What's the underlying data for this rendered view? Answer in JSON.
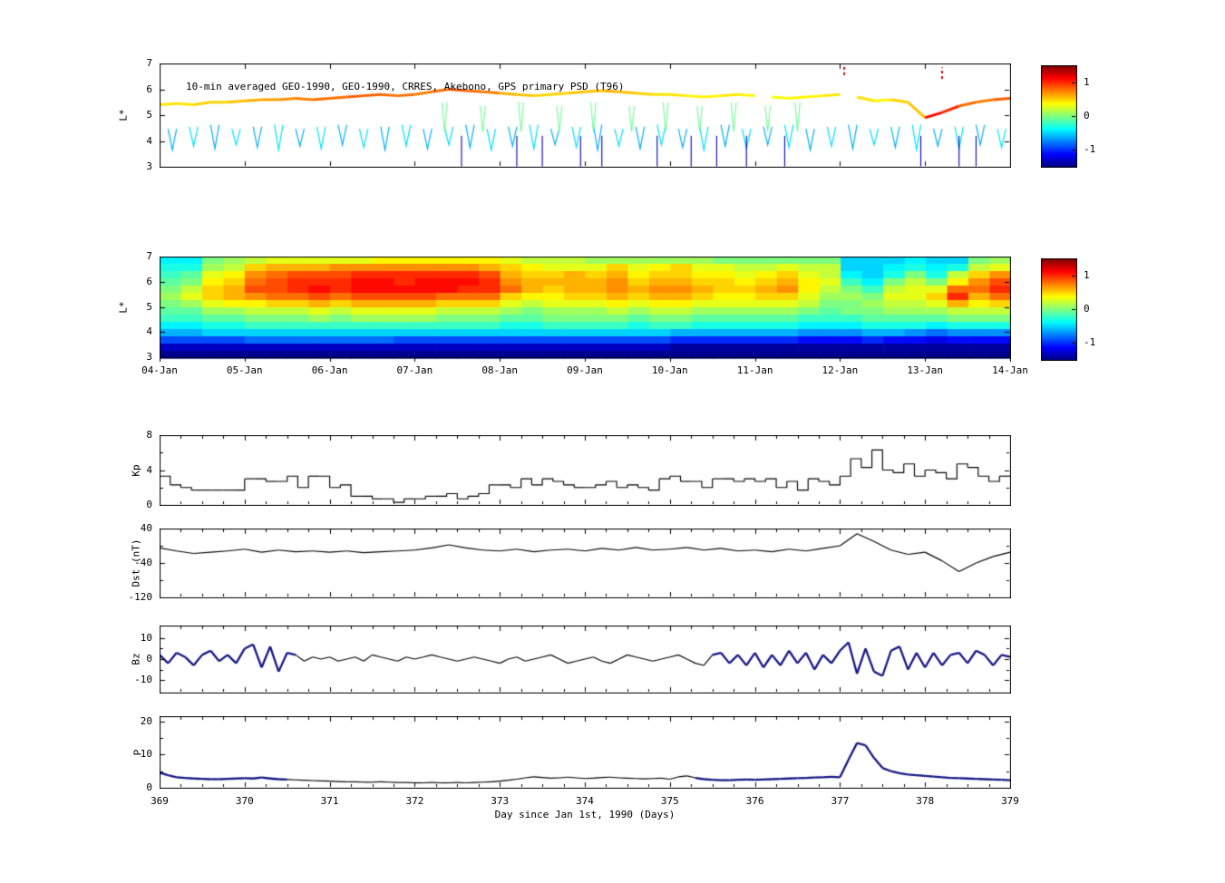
{
  "figure": {
    "background": "#ffffff",
    "axis_color": "#000000"
  },
  "colormap": {
    "vmin": -1.5,
    "vmax": 1.5,
    "tick_labels": [
      "1",
      "0",
      "-1"
    ],
    "tick_values": [
      1,
      0,
      -1
    ]
  },
  "chart_data": [
    {
      "id": "psd-scatter",
      "type": "scatter",
      "title": "10-min averaged GEO-1990, GEO-1990, CRRES, Akebono, GPS primary PSD (T96)",
      "ylabel": "L*",
      "ylim": [
        3,
        7
      ],
      "yticks": [
        3,
        4,
        5,
        6,
        7
      ],
      "xlim": [
        369,
        379
      ],
      "track": {
        "x_start": 369,
        "dx": 0.2,
        "y": [
          5.4,
          5.45,
          5.4,
          5.5,
          5.5,
          5.55,
          5.6,
          5.6,
          5.65,
          5.6,
          5.65,
          5.7,
          5.75,
          5.8,
          5.75,
          5.8,
          5.9,
          6,
          5.95,
          5.9,
          5.85,
          5.8,
          5.75,
          5.8,
          5.85,
          5.9,
          5.95,
          5.9,
          5.85,
          5.8,
          5.8,
          5.75,
          5.7,
          5.75,
          5.8,
          5.75,
          5.7,
          5.65,
          5.7,
          5.75,
          5.8,
          5.7,
          5.55,
          5.6,
          5.5,
          4.9,
          5.1,
          5.35,
          5.5,
          5.6,
          5.65
        ],
        "v": [
          0.45,
          0.45,
          0.5,
          0.5,
          0.55,
          0.6,
          0.65,
          0.7,
          0.75,
          0.8,
          0.8,
          0.85,
          0.85,
          0.8,
          0.8,
          0.75,
          0.8,
          0.85,
          0.8,
          0.75,
          0.6,
          0.55,
          0.5,
          0.5,
          0.55,
          0.55,
          0.6,
          0.55,
          0.5,
          0.45,
          0.45,
          0.4,
          0.4,
          0.45,
          0.4,
          0.35,
          0.35,
          0.4,
          0.4,
          0.45,
          0.5,
          0.45,
          0.4,
          0.5,
          0.55,
          1.1,
          1,
          0.8,
          0.75,
          0.85,
          0.9
        ],
        "gap_ranges": [
          [
            375.95,
            376.1
          ],
          [
            376.55,
            376.7
          ],
          [
            377.1,
            377.25
          ]
        ]
      },
      "v_spikes": {
        "x": [
          369.15,
          369.4,
          369.65,
          369.9,
          370.15,
          370.4,
          370.65,
          370.9,
          371.15,
          371.4,
          371.65,
          371.9,
          372.15,
          372.4,
          372.65,
          372.9,
          373.15,
          373.4,
          373.65,
          373.9,
          374.15,
          374.4,
          374.65,
          374.9,
          375.15,
          375.4,
          375.65,
          375.9,
          376.15,
          376.4,
          376.65,
          376.9,
          377.15,
          377.4,
          377.65,
          377.9,
          378.15,
          378.4,
          378.65,
          378.9
        ],
        "top": 4.55,
        "bot": 3.75,
        "v": -0.5
      },
      "tall_spikes": {
        "x": [
          372.35,
          372.8,
          373.25,
          373.7,
          374.1,
          374.55,
          374.95,
          375.35,
          375.75,
          376.15,
          376.5
        ],
        "top": 5.5,
        "bot": 4.35,
        "v": -0.05
      },
      "drop_lines": {
        "x": [
          372.55,
          373.2,
          373.5,
          373.95,
          374.2,
          374.85,
          375.25,
          375.55,
          375.9,
          376.35,
          377.95,
          378.4,
          378.6
        ],
        "top": 4.2,
        "bot": 3.02,
        "v": -1.35
      },
      "red_dashes": [
        {
          "x": 377.05,
          "y1": 6.55,
          "y2": 7.0,
          "v": 1.25
        },
        {
          "x": 378.2,
          "y1": 6.4,
          "y2": 6.85,
          "v": 1.25
        }
      ]
    },
    {
      "id": "psd-heatmap",
      "type": "heatmap",
      "ylabel": "L*",
      "ylim": [
        3,
        7
      ],
      "yticks": [
        3,
        4,
        5,
        6,
        7
      ],
      "xlim": [
        369,
        379
      ],
      "x_tick_labels": [
        "04-Jan",
        "05-Jan",
        "06-Jan",
        "07-Jan",
        "08-Jan",
        "09-Jan",
        "10-Jan",
        "11-Jan",
        "12-Jan",
        "13-Jan",
        "14-Jan"
      ],
      "grid": [
        [
          -0.4,
          -0.4,
          0,
          0.1,
          0.2,
          0.3,
          0.3,
          0.3,
          0.3,
          0.3,
          0.4,
          0.4,
          0.4,
          0.4,
          0.4,
          0.4,
          0.3,
          0.2,
          0.2,
          0.2,
          0.1,
          0.1,
          0.1,
          0.1,
          0.1,
          0.1,
          0,
          0,
          0,
          0,
          0,
          0,
          -0.5,
          -0.5,
          -0.5,
          -0.4,
          -0.5,
          -0.5,
          0,
          0.1
        ],
        [
          -0.3,
          -0.3,
          0.1,
          0.2,
          0.5,
          0.6,
          0.6,
          0.6,
          0.7,
          0.7,
          0.7,
          0.7,
          0.7,
          0.7,
          0.7,
          0.6,
          0.5,
          0.4,
          0.3,
          0.3,
          0.3,
          0.5,
          0.3,
          0.4,
          0.5,
          0.3,
          0.3,
          0.2,
          0.2,
          0.3,
          0.2,
          0.2,
          -0.5,
          -0.5,
          -0.4,
          -0.3,
          -0.4,
          -0.3,
          0.2,
          0.3
        ],
        [
          -0.2,
          -0.1,
          0.3,
          0.4,
          0.7,
          0.8,
          0.9,
          0.9,
          0.9,
          1,
          1,
          1,
          1,
          1,
          1,
          0.9,
          0.6,
          0.5,
          0.5,
          0.6,
          0.5,
          0.6,
          0.4,
          0.5,
          0.5,
          0.4,
          0.4,
          0.3,
          0.4,
          0.5,
          0.3,
          0.2,
          -0.4,
          -0.5,
          -0.3,
          0,
          -0.3,
          0.2,
          0.5,
          0.7
        ],
        [
          -0.1,
          0,
          0.4,
          0.5,
          0.8,
          0.9,
          1,
          1,
          1,
          1.1,
          1.1,
          1,
          1.1,
          1.1,
          1.1,
          1,
          0.7,
          0.6,
          0.6,
          0.6,
          0.6,
          0.7,
          0.5,
          0.6,
          0.6,
          0.5,
          0.5,
          0.4,
          0.5,
          0.6,
          0.4,
          0.3,
          -0.2,
          -0.4,
          0,
          0.2,
          0,
          0.4,
          0.7,
          0.9
        ],
        [
          0,
          0.2,
          0.5,
          0.6,
          0.9,
          0.9,
          1,
          1.1,
          1,
          1.1,
          1.1,
          1.1,
          1.1,
          1.1,
          1,
          1,
          0.8,
          0.6,
          0.5,
          0.6,
          0.6,
          0.7,
          0.6,
          0.7,
          0.7,
          0.6,
          0.5,
          0.5,
          0.6,
          0.7,
          0.4,
          0.2,
          0,
          -0.2,
          0.2,
          0.3,
          0.3,
          0.8,
          0.8,
          1
        ],
        [
          0.1,
          0.3,
          0.5,
          0.6,
          0.7,
          0.8,
          0.8,
          0.9,
          0.8,
          0.9,
          0.9,
          0.9,
          0.9,
          0.8,
          0.8,
          0.8,
          0.5,
          0.4,
          0.4,
          0.5,
          0.5,
          0.6,
          0.5,
          0.6,
          0.6,
          0.5,
          0.4,
          0.4,
          0.5,
          0.5,
          0.3,
          0.1,
          0.1,
          0,
          0.3,
          0.3,
          0.5,
          1,
          0.6,
          0.8
        ],
        [
          0,
          0.1,
          0.3,
          0.4,
          0.4,
          0.5,
          0.5,
          0.6,
          0.5,
          0.6,
          0.6,
          0.6,
          0.6,
          0.5,
          0.5,
          0.5,
          0.3,
          0.2,
          0.3,
          0.3,
          0.3,
          0.4,
          0.3,
          0.4,
          0.4,
          0.3,
          0.3,
          0.3,
          0.3,
          0.3,
          0.2,
          0,
          0,
          0.1,
          0.2,
          0.2,
          0.3,
          0.6,
          0.4,
          0.5
        ],
        [
          -0.1,
          -0.1,
          0.1,
          0.1,
          0.2,
          0.2,
          0.2,
          0.3,
          0.2,
          0.3,
          0.3,
          0.3,
          0.3,
          0.2,
          0.2,
          0.2,
          0.1,
          0,
          0.1,
          0.1,
          0.1,
          0.2,
          0.1,
          0.2,
          0.2,
          0.1,
          0.1,
          0.1,
          0.1,
          0.1,
          0,
          -0.1,
          0,
          0,
          0.1,
          0.1,
          0.1,
          0.2,
          0.2,
          0.2
        ],
        [
          -0.2,
          -0.2,
          -0.1,
          -0.1,
          0,
          0,
          0,
          0.1,
          0,
          0.1,
          0.1,
          0.1,
          0.1,
          0,
          0,
          0,
          -0.1,
          -0.1,
          0,
          0,
          0,
          0,
          -0.1,
          0,
          0,
          -0.1,
          -0.1,
          -0.1,
          -0.1,
          -0.1,
          -0.2,
          -0.2,
          -0.2,
          -0.1,
          -0.1,
          -0.1,
          -0.1,
          0,
          0,
          0
        ],
        [
          -0.4,
          -0.4,
          -0.3,
          -0.3,
          -0.2,
          -0.2,
          -0.2,
          -0.2,
          -0.2,
          -0.2,
          -0.2,
          -0.2,
          -0.2,
          -0.2,
          -0.2,
          -0.2,
          -0.3,
          -0.3,
          -0.2,
          -0.2,
          -0.2,
          -0.2,
          -0.3,
          -0.2,
          -0.2,
          -0.3,
          -0.3,
          -0.3,
          -0.3,
          -0.3,
          -0.4,
          -0.4,
          -0.4,
          -0.3,
          -0.3,
          -0.3,
          -0.4,
          -0.3,
          -0.3,
          -0.3
        ],
        [
          -0.6,
          -0.6,
          -0.5,
          -0.5,
          -0.5,
          -0.5,
          -0.5,
          -0.5,
          -0.5,
          -0.5,
          -0.5,
          -0.5,
          -0.5,
          -0.5,
          -0.5,
          -0.5,
          -0.5,
          -0.5,
          -0.5,
          -0.5,
          -0.5,
          -0.5,
          -0.5,
          -0.5,
          -0.6,
          -0.6,
          -0.6,
          -0.6,
          -0.6,
          -0.6,
          -0.7,
          -0.7,
          -0.7,
          -0.6,
          -0.6,
          -0.7,
          -0.8,
          -0.7,
          -0.7,
          -0.7
        ],
        [
          -0.9,
          -0.9,
          -0.9,
          -0.9,
          -0.8,
          -0.8,
          -0.8,
          -0.8,
          -0.8,
          -0.8,
          -0.8,
          -0.9,
          -0.9,
          -0.9,
          -0.9,
          -0.9,
          -0.9,
          -0.9,
          -0.9,
          -0.9,
          -0.9,
          -0.9,
          -0.9,
          -0.9,
          -1,
          -1,
          -1,
          -1,
          -1,
          -1,
          -1.1,
          -1.1,
          -1.1,
          -1,
          -1.1,
          -1.1,
          -1.2,
          -1.1,
          -1.1,
          -1.1
        ],
        [
          -1.3,
          -1.3,
          -1.3,
          -1.3,
          -1.3,
          -1.3,
          -1.3,
          -1.3,
          -1.3,
          -1.3,
          -1.3,
          -1.3,
          -1.3,
          -1.3,
          -1.3,
          -1.3,
          -1.3,
          -1.3,
          -1.3,
          -1.3,
          -1.3,
          -1.3,
          -1.3,
          -1.3,
          -1.4,
          -1.4,
          -1.4,
          -1.4,
          -1.4,
          -1.4,
          -1.4,
          -1.4,
          -1.4,
          -1.4,
          -1.4,
          -1.4,
          -1.4,
          -1.4,
          -1.4,
          -1.4
        ],
        [
          -1.45,
          -1.45,
          -1.45,
          -1.45,
          -1.45,
          -1.45,
          -1.45,
          -1.45,
          -1.45,
          -1.45,
          -1.45,
          -1.45,
          -1.45,
          -1.45,
          -1.45,
          -1.45,
          -1.45,
          -1.45,
          -1.45,
          -1.45,
          -1.45,
          -1.45,
          -1.45,
          -1.45,
          -1.45,
          -1.45,
          -1.45,
          -1.45,
          -1.45,
          -1.45,
          -1.45,
          -1.45,
          -1.45,
          -1.45,
          -1.45,
          -1.45,
          -1.45,
          -1.45,
          -1.45,
          -1.45
        ]
      ]
    },
    {
      "id": "kp",
      "type": "line",
      "step": true,
      "ylabel": "Kp",
      "ylim": [
        0,
        8
      ],
      "yticks": [
        0,
        4,
        8
      ],
      "y_minor": [
        2,
        6
      ],
      "xlim": [
        369,
        379
      ],
      "x_start": 369,
      "dx": 0.125,
      "values": [
        3.3,
        2.3,
        2,
        1.7,
        1.7,
        1.7,
        1.7,
        1.7,
        3,
        3,
        2.7,
        2.7,
        3.3,
        2,
        3.3,
        3.3,
        2,
        2.3,
        1,
        1,
        0.7,
        0.7,
        0.3,
        0.7,
        0.7,
        1,
        1,
        1.3,
        0.7,
        1,
        1.3,
        2.3,
        2.3,
        2,
        3,
        2.3,
        3,
        2.7,
        2.3,
        2,
        2,
        2.3,
        2.7,
        2,
        2.3,
        2,
        1.7,
        3,
        3.3,
        2.7,
        2.7,
        2,
        3,
        3,
        2.7,
        3,
        2.7,
        3,
        2,
        2.7,
        1.7,
        3,
        2.7,
        2.3,
        3.3,
        5.3,
        4.3,
        6.3,
        4,
        3.7,
        4.7,
        3.3,
        4,
        3.7,
        3,
        4.7,
        4.3,
        3.3,
        2.7,
        3.3
      ]
    },
    {
      "id": "dst",
      "type": "line",
      "ylabel": "Dst (nT)",
      "ylim": [
        -120,
        40
      ],
      "yticks": [
        40,
        -40,
        -120
      ],
      "y_minor": [
        0,
        -80
      ],
      "xlim": [
        369,
        379
      ],
      "x_start": 369,
      "dx": 0.2,
      "values": [
        -5,
        -12,
        -18,
        -15,
        -12,
        -8,
        -15,
        -10,
        -14,
        -12,
        -15,
        -12,
        -16,
        -14,
        -12,
        -10,
        -5,
        2,
        -5,
        -10,
        -12,
        -8,
        -14,
        -10,
        -8,
        -12,
        -6,
        -10,
        -4,
        -10,
        -8,
        -4,
        -10,
        -6,
        -12,
        -10,
        -14,
        -8,
        -12,
        -6,
        0,
        28,
        10,
        -10,
        -20,
        -15,
        -35,
        -60,
        -40,
        -25,
        -15
      ]
    },
    {
      "id": "bz",
      "type": "line",
      "ylabel": "Bz",
      "ylim": [
        -16,
        16
      ],
      "yticks": [
        10,
        0,
        -10
      ],
      "y_minor": [
        5,
        -5
      ],
      "xlim": [
        369,
        379
      ],
      "x_start": 369,
      "dx": 0.1,
      "highlight_color": "#161685",
      "highlight_ranges": [
        [
          369,
          370.6
        ],
        [
          375.5,
          379
        ]
      ],
      "values": [
        2,
        -2,
        3,
        1,
        -3,
        2,
        4,
        -1,
        2,
        -2,
        5,
        7,
        -4,
        6,
        -6,
        3,
        2,
        -1,
        1,
        0,
        1,
        -1,
        0,
        1,
        -1,
        2,
        1,
        0,
        -1,
        1,
        0,
        1,
        2,
        1,
        0,
        -1,
        0,
        1,
        0,
        -1,
        -2,
        0,
        1,
        -1,
        0,
        1,
        2,
        0,
        -2,
        -1,
        0,
        1,
        -1,
        -2,
        0,
        2,
        1,
        0,
        -1,
        0,
        1,
        2,
        0,
        -2,
        -3,
        2,
        3,
        -2,
        2,
        -3,
        3,
        -4,
        2,
        -3,
        4,
        -2,
        3,
        -5,
        2,
        -2,
        4,
        8,
        -7,
        5,
        -6,
        -8,
        4,
        6,
        -5,
        3,
        -4,
        3,
        -3,
        2,
        3,
        -2,
        4,
        2,
        -3,
        2,
        1
      ]
    },
    {
      "id": "p",
      "type": "line",
      "ylabel": "P",
      "ylim": [
        0,
        21.6
      ],
      "yticks": [
        0,
        10,
        20
      ],
      "y_minor": [
        5,
        15
      ],
      "xlim": [
        369,
        379
      ],
      "x_start": 369,
      "dx": 0.1,
      "highlight_color": "#161685",
      "highlight_ranges": [
        [
          369,
          370.5
        ],
        [
          375.3,
          379
        ]
      ],
      "xlabel": "Day since Jan 1st, 1990 (Days)",
      "x_tick_labels": [
        "369",
        "370",
        "371",
        "372",
        "373",
        "374",
        "375",
        "376",
        "377",
        "378",
        "379"
      ],
      "values": [
        4.6,
        3.8,
        3.2,
        3,
        2.8,
        2.7,
        2.6,
        2.6,
        2.7,
        2.8,
        2.9,
        2.8,
        3.1,
        2.8,
        2.6,
        2.5,
        2.4,
        2.3,
        2.2,
        2.1,
        2,
        1.9,
        1.8,
        1.8,
        1.7,
        1.7,
        1.8,
        1.7,
        1.6,
        1.6,
        1.5,
        1.5,
        1.6,
        1.5,
        1.5,
        1.6,
        1.5,
        1.6,
        1.7,
        1.8,
        2,
        2.3,
        2.6,
        3,
        3.3,
        3.1,
        2.9,
        3,
        3.2,
        3,
        2.8,
        2.9,
        3.1,
        3.2,
        3,
        2.9,
        2.8,
        2.7,
        2.8,
        2.9,
        2.6,
        3.3,
        3.6,
        3,
        2.6,
        2.4,
        2.3,
        2.3,
        2.4,
        2.5,
        2.4,
        2.5,
        2.6,
        2.7,
        2.8,
        2.9,
        3,
        3.1,
        3.2,
        3.3,
        3.2,
        8.5,
        13.5,
        12.8,
        9,
        6,
        5,
        4.4,
        4,
        3.8,
        3.6,
        3.4,
        3.2,
        3,
        2.9,
        2.8,
        2.7,
        2.6,
        2.5,
        2.4,
        2.3
      ]
    }
  ]
}
